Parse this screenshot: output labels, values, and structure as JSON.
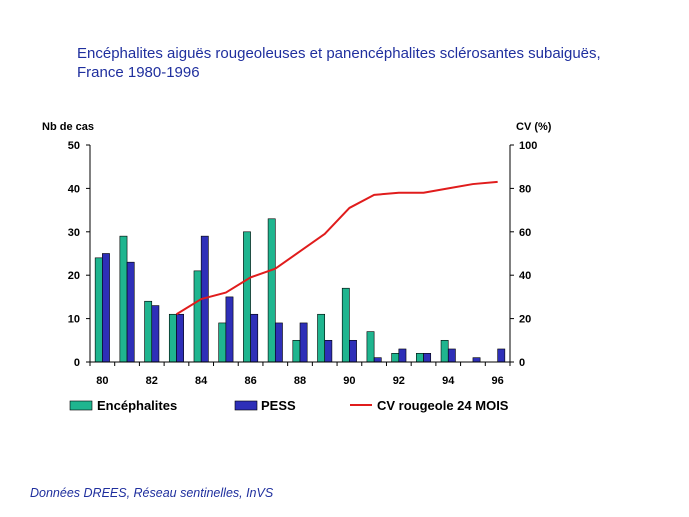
{
  "page": {
    "title_line1": "Encéphalites aiguës rougeoleuses et panencéphalites sclérosantes subaiguës,",
    "title_line2": "France 1980-1996",
    "source": "Données DREES,  Réseau sentinelles, InVS"
  },
  "chart_data": {
    "type": "bar",
    "title": "Encéphalites aiguës rougeoleuses et panencéphalites sclérosantes subaiguës, France 1980-1996",
    "ylabel": "Nb de cas",
    "y2label": "CV (%)",
    "xlabel": "",
    "ylim": [
      0,
      50
    ],
    "y2lim": [
      0,
      100
    ],
    "yticks": [
      "0",
      "10",
      "20",
      "30",
      "40",
      "50"
    ],
    "y2ticks": [
      "0",
      "20",
      "40",
      "60",
      "80",
      "100"
    ],
    "x_tick_labels": [
      "80",
      "82",
      "84",
      "86",
      "88",
      "90",
      "92",
      "94",
      "96"
    ],
    "categories": [
      "80",
      "81",
      "82",
      "83",
      "84",
      "85",
      "86",
      "87",
      "88",
      "89",
      "90",
      "91",
      "92",
      "93",
      "94",
      "95",
      "96"
    ],
    "series": [
      {
        "name": "Encéphalites",
        "type": "bar",
        "axis": "left",
        "color": "#1fb58f",
        "values": [
          24,
          29,
          14,
          11,
          21,
          9,
          30,
          33,
          5,
          11,
          17,
          7,
          2,
          2,
          5,
          0,
          0
        ]
      },
      {
        "name": "PESS",
        "type": "bar",
        "axis": "left",
        "color": "#2e2fb8",
        "values": [
          25,
          23,
          13,
          11,
          29,
          15,
          11,
          9,
          9,
          5,
          5,
          1,
          3,
          2,
          3,
          1,
          3
        ]
      },
      {
        "name": "CV rougeole 24 MOIS",
        "type": "line",
        "axis": "right",
        "color": "#e01c1c",
        "values": [
          null,
          null,
          null,
          22,
          29,
          32,
          39,
          43,
          51,
          59,
          71,
          77,
          78,
          78,
          80,
          82,
          83
        ]
      }
    ],
    "grid": false,
    "legend_position": "bottom"
  }
}
